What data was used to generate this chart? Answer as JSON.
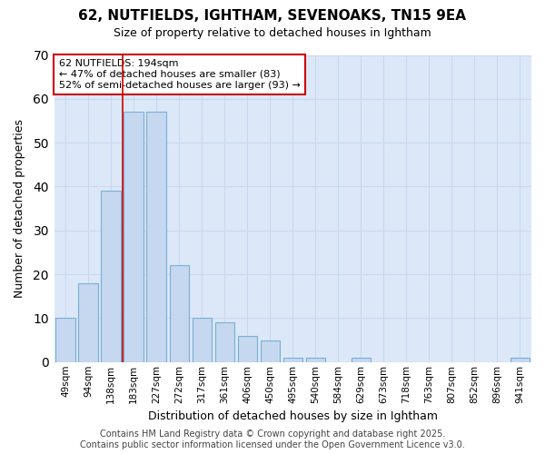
{
  "title1": "62, NUTFIELDS, IGHTHAM, SEVENOAKS, TN15 9EA",
  "title2": "Size of property relative to detached houses in Ightham",
  "xlabel": "Distribution of detached houses by size in Ightham",
  "ylabel": "Number of detached properties",
  "categories": [
    "49sqm",
    "94sqm",
    "138sqm",
    "183sqm",
    "227sqm",
    "272sqm",
    "317sqm",
    "361sqm",
    "406sqm",
    "450sqm",
    "495sqm",
    "540sqm",
    "584sqm",
    "629sqm",
    "673sqm",
    "718sqm",
    "763sqm",
    "807sqm",
    "852sqm",
    "896sqm",
    "941sqm"
  ],
  "values": [
    10,
    18,
    39,
    57,
    57,
    22,
    10,
    9,
    6,
    5,
    1,
    1,
    0,
    1,
    0,
    0,
    0,
    0,
    0,
    0,
    1
  ],
  "bar_color": "#c5d8f0",
  "bar_edge_color": "#7aafd4",
  "vline_x": 2.5,
  "vline_color": "#cc0000",
  "annotation_text": "62 NUTFIELDS: 194sqm\n← 47% of detached houses are smaller (83)\n52% of semi-detached houses are larger (93) →",
  "annotation_box_color": "#ffffff",
  "annotation_box_edge": "#cc0000",
  "ylim": [
    0,
    70
  ],
  "yticks": [
    0,
    10,
    20,
    30,
    40,
    50,
    60,
    70
  ],
  "grid_color": "#c8d8f0",
  "bg_color": "#dce8f8",
  "fig_bg_color": "#ffffff",
  "footer": "Contains HM Land Registry data © Crown copyright and database right 2025.\nContains public sector information licensed under the Open Government Licence v3.0.",
  "bar_width": 0.85,
  "title1_fontsize": 11,
  "title2_fontsize": 9,
  "annot_fontsize": 8,
  "footer_fontsize": 7
}
